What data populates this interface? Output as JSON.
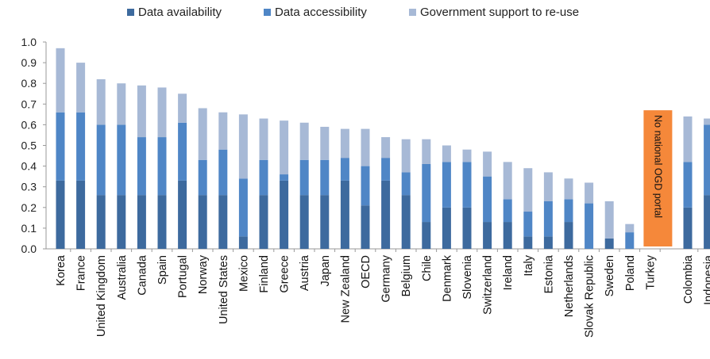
{
  "chart_data": {
    "type": "bar",
    "stacked": true,
    "ylim": [
      0,
      1.0
    ],
    "yticks": [
      "1.0",
      "0.9",
      "0.8",
      "0.7",
      "0.6",
      "0.5",
      "0.4",
      "0.3",
      "0.2",
      "0.1",
      "0.0"
    ],
    "grid": false,
    "legend_position": "top",
    "categories": [
      "Korea",
      "France",
      "United Kingdom",
      "Australia",
      "Canada",
      "Spain",
      "Portugal",
      "Norway",
      "United States",
      "Mexico",
      "Finland",
      "Greece",
      "Austria",
      "Japan",
      "New Zealand",
      "OECD",
      "Germany",
      "Belgium",
      "Chile",
      "Denmark",
      "Slovenia",
      "Switzerland",
      "Ireland",
      "Italy",
      "Estonia",
      "Netherlands",
      "Slovak Republic",
      "Sweden",
      "Poland",
      "Turkey",
      "Colombia",
      "Indonesia"
    ],
    "series": [
      {
        "name": "Data availability",
        "color": "#3d6a9e",
        "values": [
          0.33,
          0.33,
          0.26,
          0.26,
          0.26,
          0.26,
          0.33,
          0.26,
          0.26,
          0.06,
          0.26,
          0.33,
          0.26,
          0.26,
          0.33,
          0.21,
          0.33,
          0.26,
          0.13,
          0.2,
          0.2,
          0.13,
          0.13,
          0.06,
          0.06,
          0.13,
          0.0,
          0.05,
          0.0,
          0.0,
          0.2,
          0.26
        ]
      },
      {
        "name": "Data accessibility",
        "color": "#4f86c6",
        "values": [
          0.33,
          0.33,
          0.34,
          0.34,
          0.28,
          0.28,
          0.28,
          0.17,
          0.22,
          0.28,
          0.17,
          0.03,
          0.17,
          0.17,
          0.11,
          0.19,
          0.11,
          0.11,
          0.28,
          0.22,
          0.22,
          0.22,
          0.11,
          0.12,
          0.17,
          0.11,
          0.22,
          0.0,
          0.08,
          0.0,
          0.22,
          0.34
        ]
      },
      {
        "name": "Government support to re-use",
        "color": "#a7b9d6",
        "values": [
          0.31,
          0.24,
          0.22,
          0.2,
          0.25,
          0.24,
          0.14,
          0.25,
          0.18,
          0.31,
          0.2,
          0.26,
          0.18,
          0.16,
          0.14,
          0.18,
          0.1,
          0.16,
          0.12,
          0.08,
          0.06,
          0.12,
          0.18,
          0.21,
          0.14,
          0.1,
          0.1,
          0.18,
          0.04,
          0.0,
          0.22,
          0.03
        ]
      }
    ],
    "annotations": [
      {
        "category": "Turkey",
        "text": "No national OGD portal",
        "color": "#f5883a"
      }
    ]
  }
}
